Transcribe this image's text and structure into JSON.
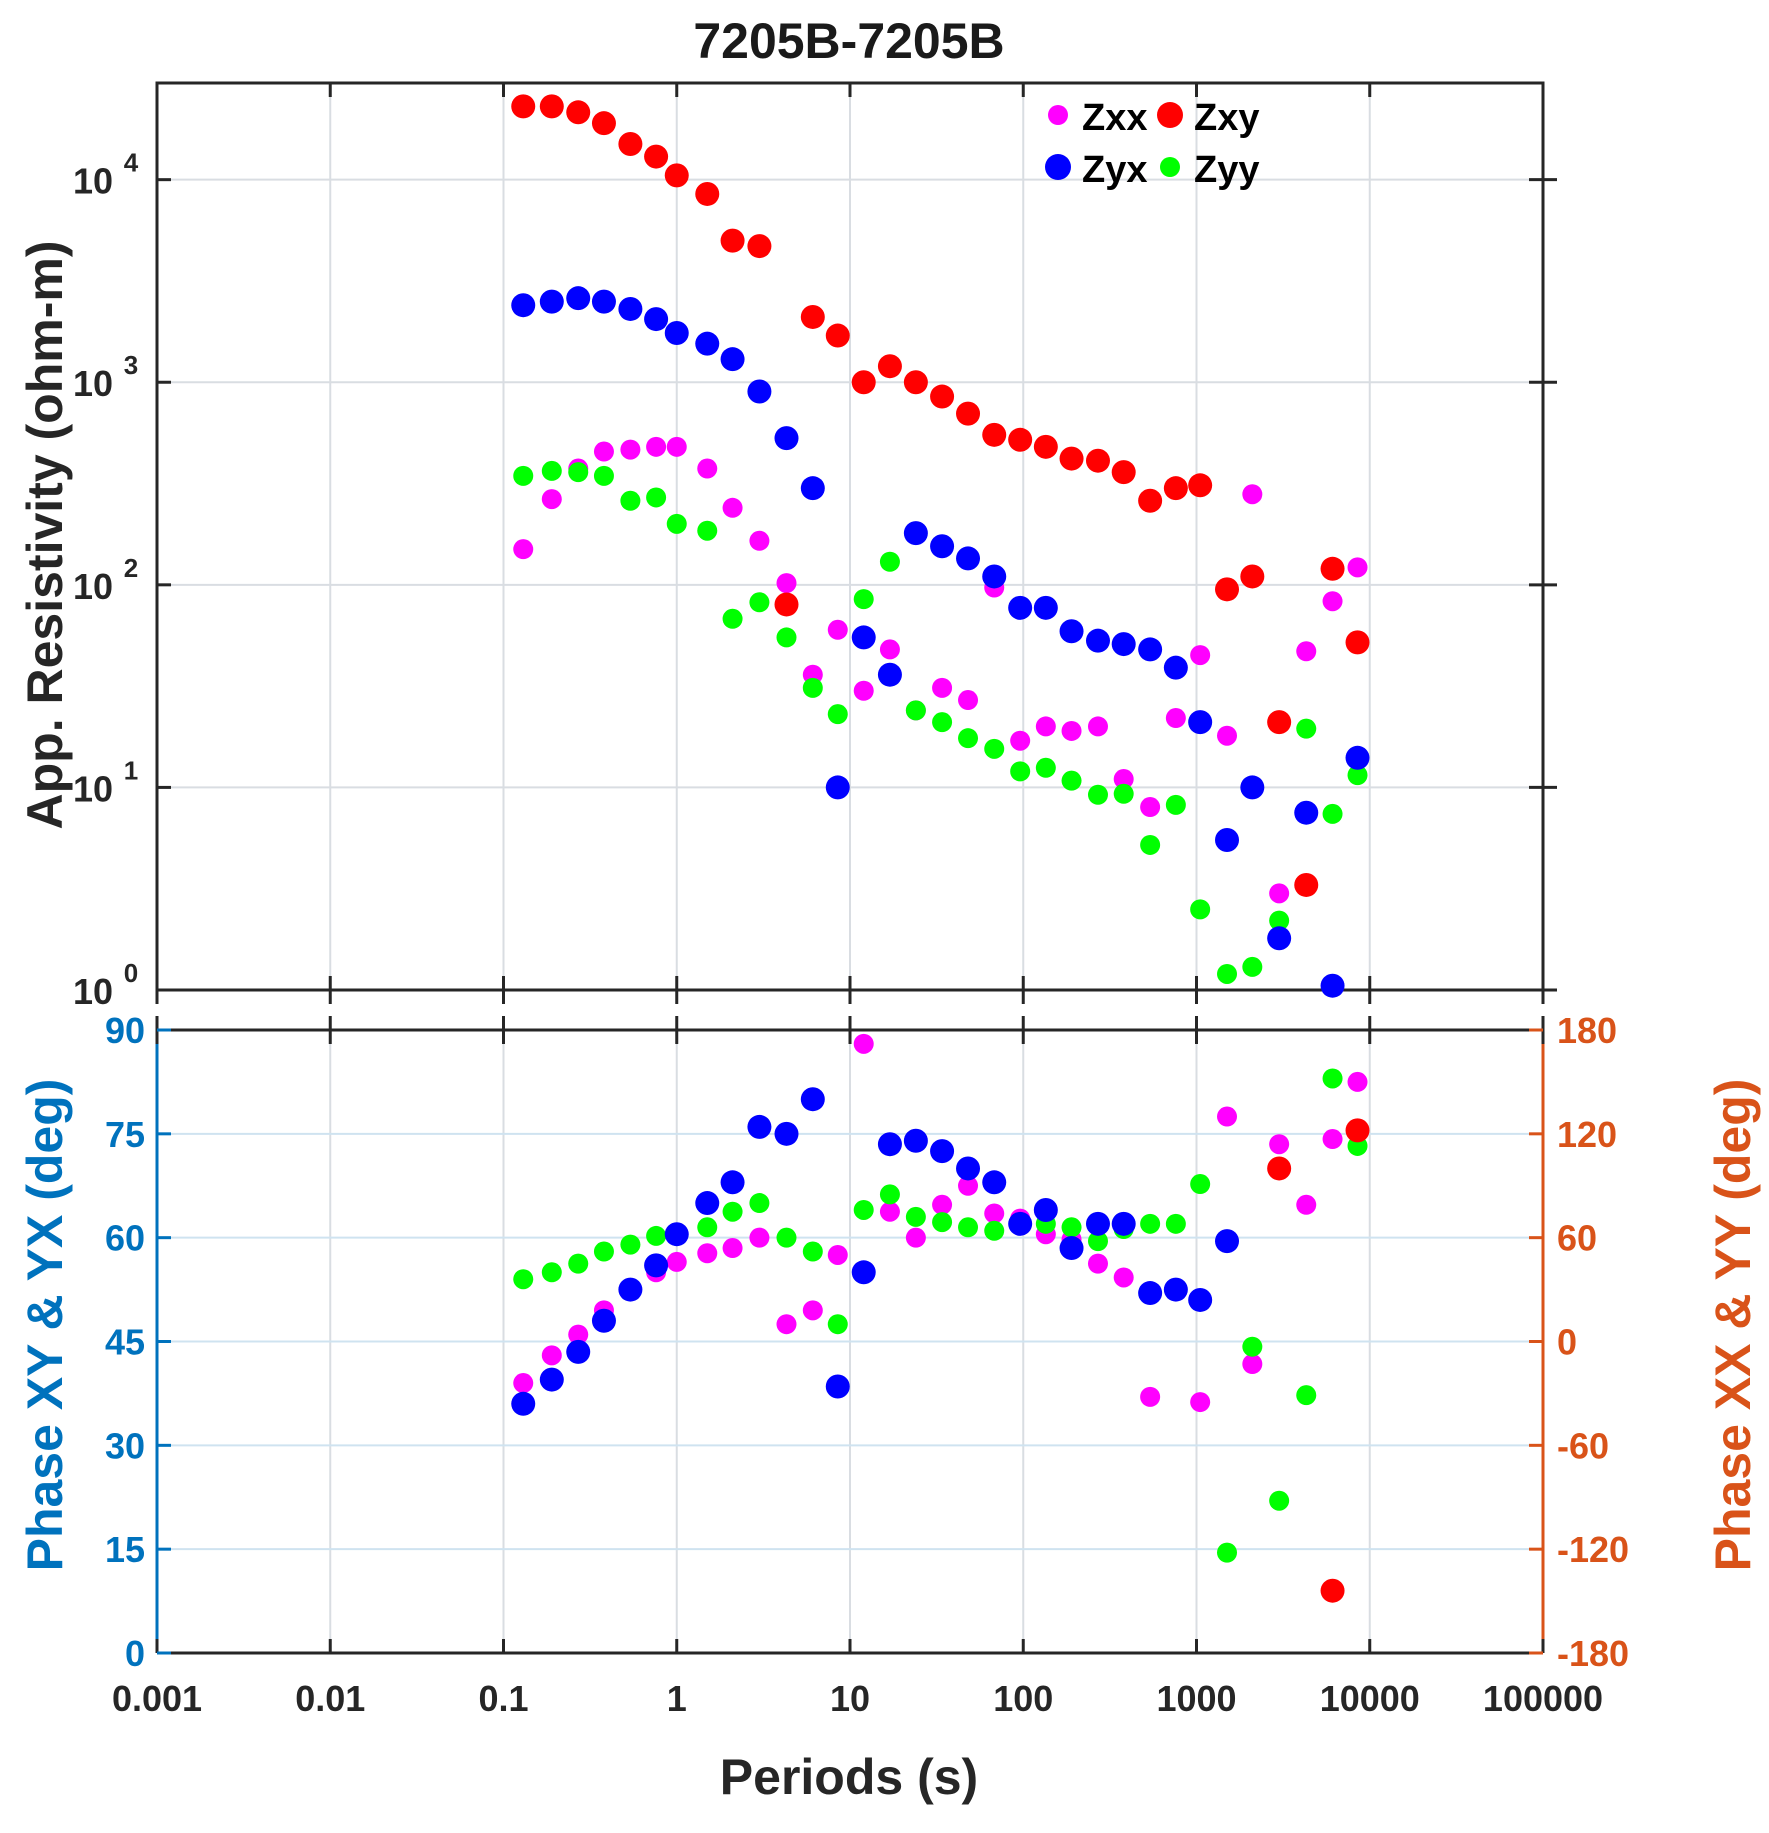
{
  "chart_data": [
    {
      "type": "scatter",
      "panel": "resistivity",
      "title": "7205B-7205B",
      "xlabel": "Periods (s)",
      "ylabel": "App. Resistivity (ohm-m)",
      "xscale": "log",
      "yscale": "log",
      "xlim": [
        0.001,
        100000
      ],
      "ylim": [
        1,
        30000
      ],
      "xticks": [
        "0.001",
        "0.01",
        "0.1",
        "1",
        "10",
        "100",
        "1000",
        "10000",
        "100000"
      ],
      "yticks": [
        {
          "base": "10",
          "exp": "0"
        },
        {
          "base": "10",
          "exp": "1"
        },
        {
          "base": "10",
          "exp": "2"
        },
        {
          "base": "10",
          "exp": "3"
        },
        {
          "base": "10",
          "exp": "4"
        }
      ],
      "grid": true,
      "legend": {
        "placement": "top-right",
        "entries": [
          {
            "label": "Zxx",
            "color": "#ff00ff"
          },
          {
            "label": "Zxy",
            "color": "#ff0000"
          },
          {
            "label": "Zyx",
            "color": "#0000ff"
          },
          {
            "label": "Zyy",
            "color": "#00ff00"
          }
        ]
      },
      "series": [
        {
          "name": "Zxx",
          "color": "#ff00ff",
          "points": [
            [
              0.13,
              150
            ],
            [
              0.19,
              265
            ],
            [
              0.27,
              375
            ],
            [
              0.38,
              455
            ],
            [
              0.54,
              465
            ],
            [
              0.76,
              480
            ],
            [
              1.0,
              480
            ],
            [
              1.5,
              375
            ],
            [
              2.1,
              240
            ],
            [
              3.0,
              165
            ],
            [
              4.3,
              102
            ],
            [
              6.1,
              36
            ],
            [
              8.5,
              60
            ],
            [
              12,
              30
            ],
            [
              17,
              48
            ],
            [
              24,
              24
            ],
            [
              34,
              31
            ],
            [
              48,
              27
            ],
            [
              68,
              97
            ],
            [
              96,
              17
            ],
            [
              135,
              20
            ],
            [
              190,
              19
            ],
            [
              270,
              20
            ],
            [
              380,
              11
            ],
            [
              540,
              8
            ],
            [
              760,
              22
            ],
            [
              1050,
              45
            ],
            [
              1500,
              18
            ],
            [
              2100,
              280
            ],
            [
              3000,
              3
            ],
            [
              4300,
              47
            ],
            [
              6100,
              83
            ],
            [
              8500,
              122
            ]
          ]
        },
        {
          "name": "Zxy",
          "color": "#ff0000",
          "points": [
            [
              0.13,
              23000
            ],
            [
              0.19,
              23000
            ],
            [
              0.27,
              21500
            ],
            [
              0.38,
              19000
            ],
            [
              0.54,
              15000
            ],
            [
              0.76,
              13000
            ],
            [
              1.0,
              10500
            ],
            [
              1.5,
              8500
            ],
            [
              2.1,
              5000
            ],
            [
              3.0,
              4700
            ],
            [
              4.3,
              80
            ],
            [
              6.1,
              2100
            ],
            [
              8.5,
              1700
            ],
            [
              12,
              1000
            ],
            [
              17,
              1200
            ],
            [
              24,
              1000
            ],
            [
              34,
              850
            ],
            [
              48,
              700
            ],
            [
              68,
              550
            ],
            [
              96,
              520
            ],
            [
              135,
              480
            ],
            [
              190,
              420
            ],
            [
              270,
              410
            ],
            [
              380,
              360
            ],
            [
              540,
              260
            ],
            [
              760,
              300
            ],
            [
              1050,
              310
            ],
            [
              1500,
              95
            ],
            [
              2100,
              110
            ],
            [
              3000,
              21
            ],
            [
              4300,
              3.3
            ],
            [
              6100,
              120
            ],
            [
              8500,
              52
            ]
          ]
        },
        {
          "name": "Zyx",
          "color": "#0000ff",
          "points": [
            [
              0.13,
              2400
            ],
            [
              0.19,
              2500
            ],
            [
              0.27,
              2600
            ],
            [
              0.38,
              2500
            ],
            [
              0.54,
              2300
            ],
            [
              0.76,
              2050
            ],
            [
              1.0,
              1750
            ],
            [
              1.5,
              1550
            ],
            [
              2.1,
              1300
            ],
            [
              3.0,
              900
            ],
            [
              4.3,
              530
            ],
            [
              6.1,
              300
            ],
            [
              8.5,
              10
            ],
            [
              12,
              55
            ],
            [
              17,
              36
            ],
            [
              24,
              180
            ],
            [
              34,
              155
            ],
            [
              48,
              135
            ],
            [
              68,
              110
            ],
            [
              96,
              77
            ],
            [
              135,
              77
            ],
            [
              190,
              59
            ],
            [
              270,
              53
            ],
            [
              380,
              51
            ],
            [
              540,
              48
            ],
            [
              760,
              39
            ],
            [
              1050,
              21
            ],
            [
              1500,
              5.5
            ],
            [
              2100,
              10
            ],
            [
              3000,
              1.8
            ],
            [
              4300,
              7.5
            ],
            [
              6100,
              1.05
            ],
            [
              8500,
              14
            ]
          ]
        },
        {
          "name": "Zyy",
          "color": "#00ff00",
          "points": [
            [
              0.13,
              345
            ],
            [
              0.19,
              365
            ],
            [
              0.27,
              360
            ],
            [
              0.38,
              345
            ],
            [
              0.54,
              260
            ],
            [
              0.76,
              270
            ],
            [
              1.0,
              200
            ],
            [
              1.5,
              185
            ],
            [
              2.1,
              68
            ],
            [
              3.0,
              82
            ],
            [
              4.3,
              55
            ],
            [
              6.1,
              31
            ],
            [
              8.5,
              23
            ],
            [
              12,
              85
            ],
            [
              17,
              130
            ],
            [
              24,
              24
            ],
            [
              34,
              21
            ],
            [
              48,
              17.5
            ],
            [
              68,
              15.5
            ],
            [
              96,
              12
            ],
            [
              135,
              12.5
            ],
            [
              190,
              10.8
            ],
            [
              270,
              9.2
            ],
            [
              380,
              9.3
            ],
            [
              540,
              5.2
            ],
            [
              760,
              8.2
            ],
            [
              1050,
              2.5
            ],
            [
              1500,
              1.2
            ],
            [
              2100,
              1.3
            ],
            [
              3000,
              2.2
            ],
            [
              4300,
              19.5
            ],
            [
              6100,
              7.4
            ],
            [
              8500,
              11.5
            ]
          ]
        }
      ]
    },
    {
      "type": "scatter",
      "panel": "phase",
      "xlabel": "Periods (s)",
      "ylabel_left": "Phase XY & YX (deg)",
      "ylabel_right": "Phase XX & YY (deg)",
      "xscale": "log",
      "xlim": [
        0.001,
        100000
      ],
      "ylim_left": [
        0,
        90
      ],
      "ylim_right": [
        -180,
        180
      ],
      "xticks": [
        "0.001",
        "0.01",
        "0.1",
        "1",
        "10",
        "100",
        "1000",
        "10000",
        "100000"
      ],
      "yticks_left": [
        "0",
        "15",
        "30",
        "45",
        "60",
        "75",
        "90"
      ],
      "yticks_right": [
        "-180",
        "-120",
        "-60",
        "0",
        "60",
        "120",
        "180"
      ],
      "left_axis_color": "#0072bd",
      "right_axis_color": "#d95319",
      "grid": true,
      "series": [
        {
          "name": "Zxx",
          "color": "#ff00ff",
          "axis": "right",
          "points": [
            [
              0.13,
              -24
            ],
            [
              0.19,
              -8
            ],
            [
              0.27,
              4
            ],
            [
              0.38,
              18
            ],
            [
              0.54,
              30
            ],
            [
              0.76,
              40
            ],
            [
              1.0,
              46
            ],
            [
              1.5,
              51
            ],
            [
              2.1,
              54
            ],
            [
              3.0,
              60
            ],
            [
              4.3,
              10
            ],
            [
              6.1,
              18
            ],
            [
              8.5,
              50
            ],
            [
              12,
              172
            ],
            [
              17,
              75
            ],
            [
              24,
              60
            ],
            [
              34,
              79
            ],
            [
              48,
              90
            ],
            [
              68,
              74
            ],
            [
              96,
              71
            ],
            [
              135,
              62
            ],
            [
              190,
              59
            ],
            [
              270,
              45
            ],
            [
              380,
              37
            ],
            [
              540,
              -32
            ],
            [
              760,
              29
            ],
            [
              1050,
              -35
            ],
            [
              1500,
              130
            ],
            [
              2100,
              -13
            ],
            [
              3000,
              114
            ],
            [
              4300,
              79
            ],
            [
              6100,
              117
            ],
            [
              8500,
              150
            ]
          ]
        },
        {
          "name": "Zxy",
          "color": "#ff0000",
          "axis": "left",
          "points": [
            [
              3000,
              70
            ],
            [
              6100,
              9
            ],
            [
              8500,
              75.5
            ]
          ]
        },
        {
          "name": "Zyx",
          "color": "#0000ff",
          "axis": "left",
          "points": [
            [
              0.13,
              36
            ],
            [
              0.19,
              39.5
            ],
            [
              0.27,
              43.5
            ],
            [
              0.38,
              48
            ],
            [
              0.54,
              52.5
            ],
            [
              0.76,
              56
            ],
            [
              1.0,
              60.5
            ],
            [
              1.5,
              65
            ],
            [
              2.1,
              68
            ],
            [
              3.0,
              76
            ],
            [
              4.3,
              75
            ],
            [
              6.1,
              80
            ],
            [
              8.5,
              38.5
            ],
            [
              12,
              55
            ],
            [
              17,
              73.5
            ],
            [
              24,
              74
            ],
            [
              34,
              72.5
            ],
            [
              48,
              70
            ],
            [
              68,
              68
            ],
            [
              96,
              62
            ],
            [
              135,
              64
            ],
            [
              190,
              58.5
            ],
            [
              270,
              62
            ],
            [
              380,
              62
            ],
            [
              540,
              52
            ],
            [
              760,
              52.5
            ],
            [
              1050,
              51
            ],
            [
              1500,
              59.5
            ]
          ]
        },
        {
          "name": "Zyy",
          "color": "#00ff00",
          "axis": "right",
          "points": [
            [
              0.13,
              36
            ],
            [
              0.19,
              40
            ],
            [
              0.27,
              45
            ],
            [
              0.38,
              52
            ],
            [
              0.54,
              56
            ],
            [
              0.76,
              61
            ],
            [
              1.0,
              61
            ],
            [
              1.5,
              66
            ],
            [
              2.1,
              75
            ],
            [
              3.0,
              80
            ],
            [
              4.3,
              60
            ],
            [
              6.1,
              52
            ],
            [
              8.5,
              10
            ],
            [
              12,
              76
            ],
            [
              17,
              85
            ],
            [
              24,
              72
            ],
            [
              34,
              69
            ],
            [
              48,
              66
            ],
            [
              68,
              64
            ],
            [
              96,
              68
            ],
            [
              135,
              68
            ],
            [
              190,
              66
            ],
            [
              270,
              58
            ],
            [
              380,
              65
            ],
            [
              540,
              68
            ],
            [
              760,
              68
            ],
            [
              1050,
              91
            ],
            [
              1500,
              -122
            ],
            [
              2100,
              -3
            ],
            [
              3000,
              -92
            ],
            [
              4300,
              -31
            ],
            [
              6100,
              152
            ],
            [
              8500,
              113
            ]
          ]
        }
      ]
    }
  ]
}
